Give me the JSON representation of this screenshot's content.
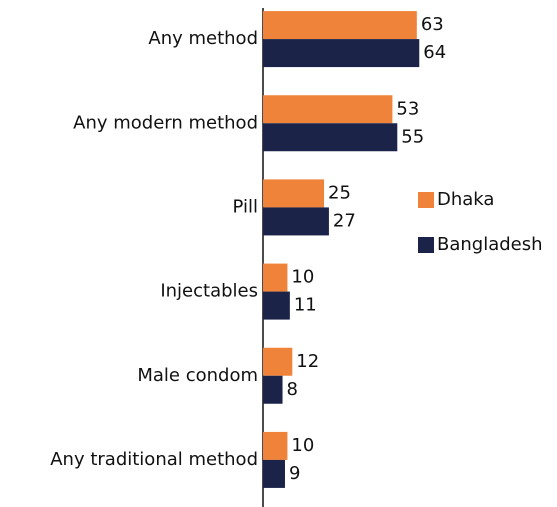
{
  "chart_data": {
    "type": "hbar",
    "categories": [
      "Any method",
      "Any modern method",
      "Pill",
      "Injectables",
      "Male condom",
      "Any traditional method"
    ],
    "series": [
      {
        "name": "Dhaka",
        "color": "#f0833a",
        "values": [
          63,
          53,
          25,
          10,
          12,
          10
        ]
      },
      {
        "name": "Bangladesh",
        "color": "#1b2349",
        "values": [
          64,
          55,
          27,
          11,
          8,
          9
        ]
      }
    ],
    "xlim": [
      0,
      120
    ],
    "legend": "right"
  }
}
